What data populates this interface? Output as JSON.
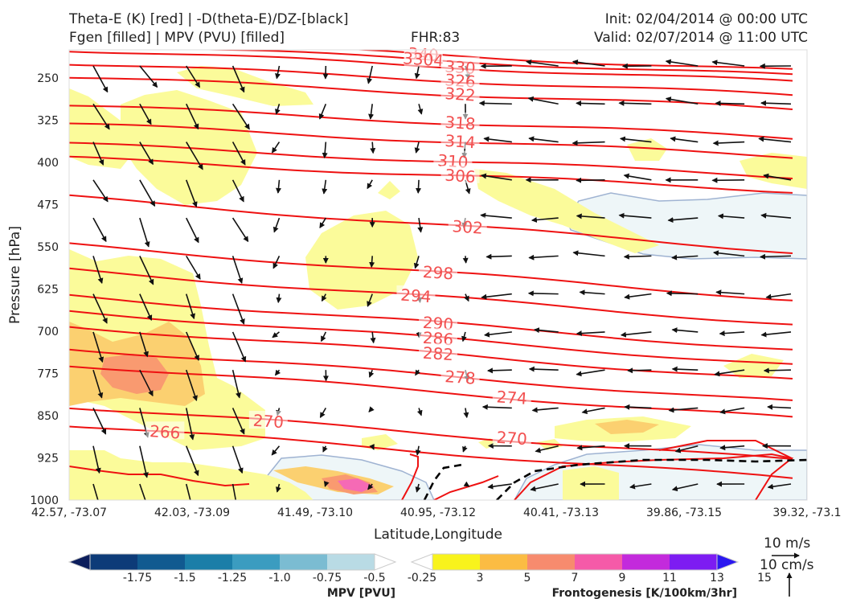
{
  "header": {
    "title_line1": "Theta-E (K) [red] | -D(theta-E)/DZ-[black]",
    "title_line2": "Fgen [filled] | MPV (PVU) [filled]",
    "fhr": "FHR:83",
    "init": "Init: 02/04/2014 @ 00:00 UTC",
    "valid": "Valid: 02/07/2014 @ 11:00 UTC"
  },
  "chart_data": {
    "type": "cross-section",
    "xlabel": "Latitude,Longitude",
    "ylabel": "Pressure [hPa]",
    "x_ticks": [
      "42.57, -73.07",
      "42.03, -73.09",
      "41.49, -73.10",
      "40.95, -73.12",
      "40.41, -73.13",
      "39.86, -73.15",
      "39.32, -73.1"
    ],
    "y_ticks": [
      250,
      325,
      400,
      475,
      550,
      625,
      700,
      775,
      850,
      925,
      1000
    ],
    "ylim": [
      1000,
      200
    ],
    "y_inverted": true,
    "theta_e_contour_labels": [
      {
        "value": "340",
        "x_frac": 0.48,
        "p": 208
      },
      {
        "value": "3304",
        "x_frac": 0.48,
        "p": 217
      },
      {
        "value": "330",
        "x_frac": 0.53,
        "p": 231
      },
      {
        "value": "326",
        "x_frac": 0.53,
        "p": 255
      },
      {
        "value": "322",
        "x_frac": 0.53,
        "p": 279
      },
      {
        "value": "318",
        "x_frac": 0.53,
        "p": 330
      },
      {
        "value": "314",
        "x_frac": 0.53,
        "p": 363
      },
      {
        "value": "310",
        "x_frac": 0.52,
        "p": 398
      },
      {
        "value": "306",
        "x_frac": 0.53,
        "p": 424
      },
      {
        "value": "302",
        "x_frac": 0.54,
        "p": 515
      },
      {
        "value": "298",
        "x_frac": 0.5,
        "p": 596
      },
      {
        "value": "294",
        "x_frac": 0.47,
        "p": 637
      },
      {
        "value": "290",
        "x_frac": 0.5,
        "p": 686
      },
      {
        "value": "286",
        "x_frac": 0.5,
        "p": 713
      },
      {
        "value": "282",
        "x_frac": 0.5,
        "p": 740
      },
      {
        "value": "278",
        "x_frac": 0.53,
        "p": 782
      },
      {
        "value": "274",
        "x_frac": 0.6,
        "p": 818
      },
      {
        "value": "270",
        "x_frac": 0.27,
        "p": 860
      },
      {
        "value": "266",
        "x_frac": 0.13,
        "p": 879
      },
      {
        "value": "270",
        "x_frac": 0.6,
        "p": 890
      }
    ]
  },
  "colorbars": {
    "mpv": {
      "title": "MPV [PVU]",
      "ticks": [
        "-1.75",
        "-1.5",
        "-1.25",
        "-1.0",
        "-0.75",
        "-0.5",
        "-0.25"
      ],
      "colors": [
        "#0c1e5c",
        "#0d3b78",
        "#115a90",
        "#1b7ea8",
        "#3b9cc0",
        "#7bbcd2",
        "#b9dbe5",
        "#ffffff"
      ]
    },
    "fgen": {
      "title": "Frontogenesis [K/100km/3hr]",
      "ticks": [
        "3",
        "5",
        "7",
        "9",
        "11",
        "13",
        "15"
      ],
      "colors": [
        "#ffffff",
        "#f8f31c",
        "#fbbc43",
        "#f78b6e",
        "#f55aa8",
        "#c32adc",
        "#7d1cf2",
        "#2b18f0"
      ]
    }
  },
  "reference_vectors": {
    "horizontal": "10 m/s",
    "vertical": "10 cm/s"
  },
  "colors": {
    "theta_e": "#ee1111",
    "theta_e_label": "#f25050",
    "dthetae_dz": "#000000",
    "vectors": "#111111"
  }
}
